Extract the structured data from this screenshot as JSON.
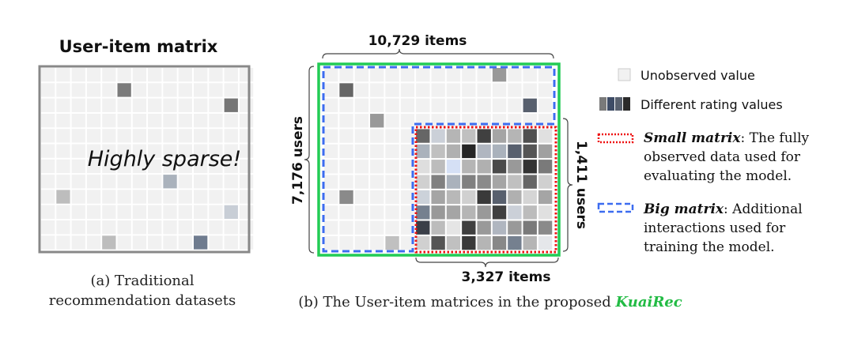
{
  "left_panel": {
    "title": "User-item matrix",
    "overlay_text": "Highly sparse!",
    "caption_line1": "(a) Traditional",
    "caption_line2": "recommendation datasets",
    "grid": {
      "cols": 14,
      "rows": 12
    },
    "observed_cells": [
      [
        1,
        5,
        "#7b7b7b"
      ],
      [
        2,
        12,
        "#767676"
      ],
      [
        7,
        8,
        "#aab2bc"
      ],
      [
        8,
        1,
        "#bdbdbd"
      ],
      [
        9,
        12,
        "#c8ced6"
      ],
      [
        11,
        4,
        "#bdbdbd"
      ],
      [
        11,
        10,
        "#6f7c8f"
      ]
    ]
  },
  "right_panel": {
    "items_total_label": "10,729 items",
    "users_total_label": "7,176 users",
    "users_small_label": "1,411 users",
    "items_small_label": "3,327 items",
    "caption_prefix": "(b) The User-item matrices in the proposed ",
    "caption_dataset": "KuaiRec",
    "grid": {
      "cols": 15,
      "rows": 12
    },
    "small_matrix": {
      "row_start": 4,
      "col_start": 6
    },
    "observed_cells": [
      [
        0,
        11,
        "#999999"
      ],
      [
        1,
        1,
        "#666666"
      ],
      [
        2,
        13,
        "#58606e"
      ],
      [
        3,
        3,
        "#999999"
      ],
      [
        8,
        1,
        "#8a8a8a"
      ],
      [
        11,
        4,
        "#c0c0c0"
      ]
    ],
    "small_matrix_colors": [
      [
        "#666666",
        "#cbd0d8",
        "#b5b5b5",
        "#c0c0c0",
        "#404040",
        "#a5a5a5",
        "#b5b5b5",
        "#4f4f4f",
        "#e0e0e0"
      ],
      [
        "#aab2bc",
        "#c0c0c0",
        "#b0b0b0",
        "#262626",
        "#b0b6c0",
        "#aab2bc",
        "#58606e",
        "#555555",
        "#a0a0a0"
      ],
      [
        "#dedede",
        "#bcbcbc",
        "#d5e0f5",
        "#b5b5b5",
        "#b0b0b0",
        "#4a4a4a",
        "#999999",
        "#333333",
        "#7a7a7a"
      ],
      [
        "#d0d0d0",
        "#808080",
        "#aab2bc",
        "#808080",
        "#8a8a8a",
        "#a5a5a5",
        "#c0c0c0",
        "#666666",
        "#d0d0d0"
      ],
      [
        "#ccd2da",
        "#a5a5a5",
        "#b8b8b8",
        "#d0d0d0",
        "#3a3a3a",
        "#58606e",
        "#b0b0b0",
        "#d5d5d5",
        "#a5a5a5"
      ],
      [
        "#75808f",
        "#999999",
        "#a5a5a5",
        "#b5b5b5",
        "#999999",
        "#404040",
        "#cbd0d8",
        "#bcbcbc",
        "#e0e0e0"
      ],
      [
        "#3a3f48",
        "#bcbcbc",
        "#e5e5e5",
        "#404040",
        "#999999",
        "#b0b6c0",
        "#999999",
        "#7a7a7a",
        "#8a8a8a"
      ],
      [
        "#d0d0d0",
        "#555555",
        "#c0c0c0",
        "#3a3a3a",
        "#b5b5b5",
        "#888888",
        "#75808f",
        "#b5b5b5",
        "#e5e7ea"
      ]
    ]
  },
  "legend": {
    "unobserved_label": "Unobserved value",
    "rating_label": "Different rating values",
    "rating_swatches": [
      "#7a7a7a",
      "#3e4c66",
      "#58606e",
      "#2a2a2a"
    ],
    "small_title": "Small matrix",
    "small_desc_line1": ": The fully",
    "small_desc_line2": "observed data used for",
    "small_desc_line3": "evaluating the model.",
    "big_title": "Big matrix",
    "big_desc_line1": ": Additional",
    "big_desc_line2": "interactions used for",
    "big_desc_line3": "training the model."
  },
  "colors": {
    "unobserved": "#f1f1f1",
    "outer_box": "#22cc55",
    "big_matrix": "#3c6cf0",
    "small_matrix": "#ee1111",
    "dataset_name": "#22bb44",
    "left_border": "#888888"
  }
}
